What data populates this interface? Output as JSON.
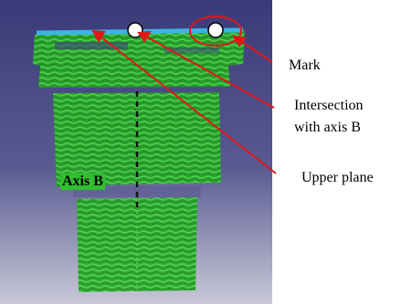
{
  "labels": {
    "mark": "Mark",
    "intersection_line1": "Intersection",
    "intersection_line2": "with axis B",
    "upper_plane": "Upper plane",
    "axis_b": "Axis B"
  },
  "colors": {
    "background_top": "#3c3b78",
    "background_bottom": "#c9c9d9",
    "point_cloud": "#2fbf2f",
    "upper_plane": "#3cb4e6",
    "arrows": "#e01818",
    "axis": "#111111"
  }
}
